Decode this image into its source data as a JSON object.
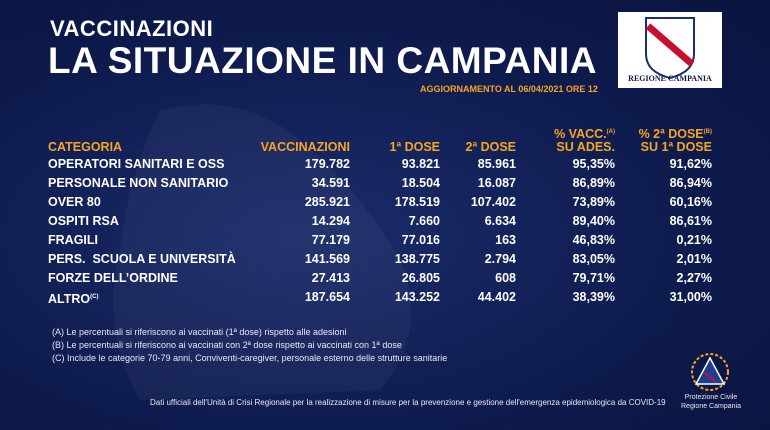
{
  "header": {
    "kicker": "VACCINAZIONI",
    "title": "LA SITUAZIONE IN CAMPANIA",
    "update": "AGGIORNAMENTO AL 06/04/2021 ORE 12"
  },
  "region_logo": {
    "label": "REGIONE CAMPANIA"
  },
  "table": {
    "columns": [
      {
        "lines": [
          "CATEGORIA"
        ]
      },
      {
        "lines": [
          "VACCINAZIONI"
        ]
      },
      {
        "lines": [
          "1ª DOSE"
        ]
      },
      {
        "lines": [
          "2ª DOSE"
        ]
      },
      {
        "lines": [
          "% VACC.",
          "SU ADES."
        ],
        "note": "(A)"
      },
      {
        "lines": [
          "% 2ª DOSE",
          "SU 1ª DOSE"
        ],
        "note": "(B)"
      }
    ],
    "rows": [
      {
        "label": "OPERATORI SANITARI E OSS",
        "cells": [
          "179.782",
          "93.821",
          "85.961",
          "95,35%",
          "91,62%"
        ]
      },
      {
        "label": "PERSONALE NON SANITARIO",
        "cells": [
          "34.591",
          "18.504",
          "16.087",
          "86,89%",
          "86,94%"
        ]
      },
      {
        "label": "OVER 80",
        "cells": [
          "285.921",
          "178.519",
          "107.402",
          "73,89%",
          "60,16%"
        ]
      },
      {
        "label": "OSPITI RSA",
        "cells": [
          "14.294",
          "7.660",
          "6.634",
          "89,40%",
          "86,61%"
        ]
      },
      {
        "label": "FRAGILI",
        "cells": [
          "77.179",
          "77.016",
          "163",
          "46,83%",
          "0,21%"
        ]
      },
      {
        "label": "PERS.  SCUOLA E UNIVERSITÀ",
        "cells": [
          "141.569",
          "138.775",
          "2.794",
          "83,05%",
          "2,01%"
        ]
      },
      {
        "label": "FORZE DELL’ORDINE",
        "cells": [
          "27.413",
          "26.805",
          "608",
          "79,71%",
          "2,27%"
        ]
      },
      {
        "label": "ALTRO",
        "note": "(C)",
        "cells": [
          "187.654",
          "143.252",
          "44.402",
          "38,39%",
          "31,00%"
        ]
      }
    ]
  },
  "footnotes": [
    "(A) Le percentuali si riferiscono ai vaccinati (1ª dose) rispetto alle adesioni",
    "(B) Le percentuali si riferiscono ai vaccinati con 2ª dose rispetto ai vaccinati con 1ª dose",
    "(C) Include le categorie 70-79 anni, Conviventi-caregiver, personale esterno delle strutture sanitarie"
  ],
  "source": "Dati ufficiali dell'Unità di Crisi Regionale per la realizzazione di misure per la prevenzione e gestione dell'emergenza epidemiologica da COVID-19",
  "civil_logo": {
    "lines": [
      "Protezione Civile",
      "Regione Campania"
    ]
  }
}
